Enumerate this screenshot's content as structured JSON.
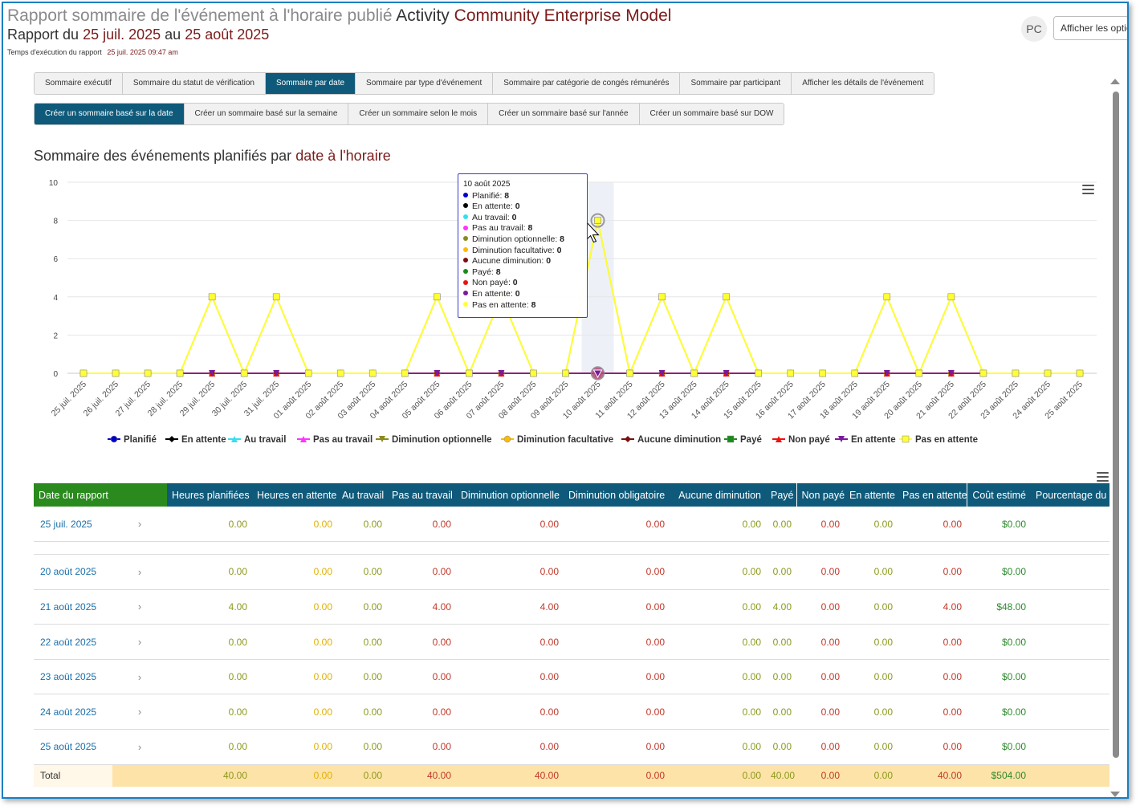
{
  "header": {
    "title_prefix": "Rapport sommaire de l'événement à l'horaire publié",
    "title_activity": "Activity",
    "title_name": "Community Enterprise Model",
    "range_prefix": "Rapport du",
    "range_start": "25 juil. 2025",
    "range_mid": "au",
    "range_end": "25 août 2025",
    "runtime_label": "Temps d'exécution du rapport",
    "runtime_value": "25 juil. 2025 09:47 am",
    "avatar": "PC",
    "options_button": "Afficher les options"
  },
  "tabs_main": [
    {
      "label": "Sommaire exécutif",
      "active": false
    },
    {
      "label": "Sommaire du statut de vérification",
      "active": false
    },
    {
      "label": "Sommaire par date",
      "active": true
    },
    {
      "label": "Sommaire par type d'événement",
      "active": false
    },
    {
      "label": "Sommaire par catégorie de congés rémunérés",
      "active": false
    },
    {
      "label": "Sommaire par participant",
      "active": false
    },
    {
      "label": "Afficher les détails de l'événement",
      "active": false
    }
  ],
  "tabs_sub": [
    {
      "label": "Créer un sommaire basé sur la date",
      "active": true
    },
    {
      "label": "Créer un sommaire basé sur la semaine",
      "active": false
    },
    {
      "label": "Créer un sommaire selon le mois",
      "active": false
    },
    {
      "label": "Créer un sommaire basé sur l'année",
      "active": false
    },
    {
      "label": "Créer un sommaire basé sur DOW",
      "active": false
    }
  ],
  "chart": {
    "title_prefix": "Sommaire des événements planifiés par",
    "title_highlight": "date à l'horaire"
  },
  "tooltip": {
    "date": "10 août 2025",
    "rows": [
      {
        "label": "Planifié:",
        "value": "8",
        "color": "#0000cc"
      },
      {
        "label": "En attente:",
        "value": "0",
        "color": "#000000"
      },
      {
        "label": "Au travail:",
        "value": "0",
        "color": "#33e0f0"
      },
      {
        "label": "Pas au travail:",
        "value": "8",
        "color": "#ff33ff"
      },
      {
        "label": "Diminution optionnelle:",
        "value": "8",
        "color": "#8a8a1e"
      },
      {
        "label": "Diminution facultative:",
        "value": "0",
        "color": "#ffbb00"
      },
      {
        "label": "Aucune diminution:",
        "value": "0",
        "color": "#7b1010"
      },
      {
        "label": "Payé:",
        "value": "8",
        "color": "#1a8a1a"
      },
      {
        "label": "Non payé:",
        "value": "0",
        "color": "#ee1111"
      },
      {
        "label": "En attente:",
        "value": "0",
        "color": "#7a1a9a"
      },
      {
        "label": "Pas en attente:",
        "value": "8",
        "color": "#ffff33"
      }
    ]
  },
  "chart_data": {
    "type": "line",
    "title": "Sommaire des événements planifiés par date à l'horaire",
    "ylim": [
      0,
      10
    ],
    "yticks": [
      0,
      2,
      4,
      6,
      8,
      10
    ],
    "grid": true,
    "legend_position": "bottom",
    "categories": [
      "25 juil. 2025",
      "26 juil. 2025",
      "27 juil. 2025",
      "28 juil. 2025",
      "29 juil. 2025",
      "30 juil. 2025",
      "31 juil. 2025",
      "01 août 2025",
      "02 août 2025",
      "03 août 2025",
      "04 août 2025",
      "05 août 2025",
      "06 août 2025",
      "07 août 2025",
      "08 août 2025",
      "09 août 2025",
      "10 août 2025",
      "11 août 2025",
      "12 août 2025",
      "13 août 2025",
      "14 août 2025",
      "15 août 2025",
      "16 août 2025",
      "17 août 2025",
      "18 août 2025",
      "19 août 2025",
      "20 août 2025",
      "21 août 2025",
      "22 août 2025",
      "23 août 2025",
      "24 août 2025",
      "25 août 2025"
    ],
    "series": [
      {
        "name": "Planifié",
        "color": "#0000cc",
        "marker": "circle",
        "values": [
          0,
          0,
          0,
          0,
          4,
          0,
          4,
          0,
          0,
          0,
          0,
          4,
          0,
          4,
          0,
          0,
          8,
          0,
          4,
          0,
          4,
          0,
          0,
          0,
          0,
          4,
          0,
          4,
          0,
          0,
          0,
          0
        ]
      },
      {
        "name": "En attente",
        "color": "#000000",
        "marker": "diamond",
        "values": [
          0,
          0,
          0,
          0,
          0,
          0,
          0,
          0,
          0,
          0,
          0,
          0,
          0,
          0,
          0,
          0,
          0,
          0,
          0,
          0,
          0,
          0,
          0,
          0,
          0,
          0,
          0,
          0,
          0,
          0,
          0,
          0
        ]
      },
      {
        "name": "Au travail",
        "color": "#33e0f0",
        "marker": "triangle",
        "values": [
          0,
          0,
          0,
          0,
          0,
          0,
          0,
          0,
          0,
          0,
          0,
          0,
          0,
          0,
          0,
          0,
          0,
          0,
          0,
          0,
          0,
          0,
          0,
          0,
          0,
          0,
          0,
          0,
          0,
          0,
          0,
          0
        ]
      },
      {
        "name": "Pas au travail",
        "color": "#ff33ff",
        "marker": "triangle",
        "values": [
          0,
          0,
          0,
          0,
          4,
          0,
          4,
          0,
          0,
          0,
          0,
          4,
          0,
          4,
          0,
          0,
          8,
          0,
          4,
          0,
          4,
          0,
          0,
          0,
          0,
          4,
          0,
          4,
          0,
          0,
          0,
          0
        ]
      },
      {
        "name": "Diminution optionnelle",
        "color": "#8a8a1e",
        "marker": "triangle-down",
        "values": [
          0,
          0,
          0,
          0,
          4,
          0,
          4,
          0,
          0,
          0,
          0,
          4,
          0,
          4,
          0,
          0,
          8,
          0,
          4,
          0,
          4,
          0,
          0,
          0,
          0,
          4,
          0,
          4,
          0,
          0,
          0,
          0
        ]
      },
      {
        "name": "Diminution facultative",
        "color": "#ffbb00",
        "marker": "circle",
        "values": [
          0,
          0,
          0,
          0,
          0,
          0,
          0,
          0,
          0,
          0,
          0,
          0,
          0,
          0,
          0,
          0,
          0,
          0,
          0,
          0,
          0,
          0,
          0,
          0,
          0,
          0,
          0,
          0,
          0,
          0,
          0,
          0
        ]
      },
      {
        "name": "Aucune diminution",
        "color": "#7b1010",
        "marker": "diamond",
        "values": [
          0,
          0,
          0,
          0,
          0,
          0,
          0,
          0,
          0,
          0,
          0,
          0,
          0,
          0,
          0,
          0,
          0,
          0,
          0,
          0,
          0,
          0,
          0,
          0,
          0,
          0,
          0,
          0,
          0,
          0,
          0,
          0
        ]
      },
      {
        "name": "Payé",
        "color": "#1a8a1a",
        "marker": "square",
        "values": [
          0,
          0,
          0,
          0,
          4,
          0,
          4,
          0,
          0,
          0,
          0,
          4,
          0,
          4,
          0,
          0,
          8,
          0,
          4,
          0,
          4,
          0,
          0,
          0,
          0,
          4,
          0,
          4,
          0,
          0,
          0,
          0
        ]
      },
      {
        "name": "Non payé",
        "color": "#ee1111",
        "marker": "triangle",
        "values": [
          0,
          0,
          0,
          0,
          0,
          0,
          0,
          0,
          0,
          0,
          0,
          0,
          0,
          0,
          0,
          0,
          0,
          0,
          0,
          0,
          0,
          0,
          0,
          0,
          0,
          0,
          0,
          0,
          0,
          0,
          0,
          0
        ]
      },
      {
        "name": "En attente",
        "color": "#7a1a9a",
        "marker": "triangle-down",
        "values": [
          0,
          0,
          0,
          0,
          0,
          0,
          0,
          0,
          0,
          0,
          0,
          0,
          0,
          0,
          0,
          0,
          0,
          0,
          0,
          0,
          0,
          0,
          0,
          0,
          0,
          0,
          0,
          0,
          0,
          0,
          0,
          0
        ]
      },
      {
        "name": "Pas en attente",
        "color": "#ffff33",
        "marker": "square",
        "values": [
          0,
          0,
          0,
          0,
          4,
          0,
          4,
          0,
          0,
          0,
          0,
          4,
          0,
          4,
          0,
          0,
          8,
          0,
          4,
          0,
          4,
          0,
          0,
          0,
          0,
          4,
          0,
          4,
          0,
          0,
          0,
          0
        ]
      }
    ]
  },
  "table": {
    "columns": [
      "Date du rapport",
      "Heures planifiées",
      "Heures en attente",
      "Au travail",
      "Pas au travail",
      "Diminution optionnelle",
      "Diminution obligatoire",
      "Aucune diminution",
      "Payé",
      "Non payé",
      "En attente",
      "Pas en attente",
      "Coût estimé",
      "Pourcentage du no"
    ],
    "rows": [
      {
        "date": "25 juil. 2025",
        "v": [
          "0.00",
          "0.00",
          "0.00",
          "0.00",
          "0.00",
          "0.00",
          "0.00",
          "0.00",
          "0.00",
          "0.00",
          "0.00",
          "$0.00"
        ]
      },
      {
        "empty": true
      },
      {
        "date": "20 août 2025",
        "v": [
          "0.00",
          "0.00",
          "0.00",
          "0.00",
          "0.00",
          "0.00",
          "0.00",
          "0.00",
          "0.00",
          "0.00",
          "0.00",
          "$0.00"
        ]
      },
      {
        "date": "21 août 2025",
        "v": [
          "4.00",
          "0.00",
          "0.00",
          "4.00",
          "4.00",
          "0.00",
          "0.00",
          "4.00",
          "0.00",
          "0.00",
          "4.00",
          "$48.00"
        ]
      },
      {
        "date": "22 août 2025",
        "v": [
          "0.00",
          "0.00",
          "0.00",
          "0.00",
          "0.00",
          "0.00",
          "0.00",
          "0.00",
          "0.00",
          "0.00",
          "0.00",
          "$0.00"
        ]
      },
      {
        "date": "23 août 2025",
        "v": [
          "0.00",
          "0.00",
          "0.00",
          "0.00",
          "0.00",
          "0.00",
          "0.00",
          "0.00",
          "0.00",
          "0.00",
          "0.00",
          "$0.00"
        ]
      },
      {
        "date": "24 août 2025",
        "v": [
          "0.00",
          "0.00",
          "0.00",
          "0.00",
          "0.00",
          "0.00",
          "0.00",
          "0.00",
          "0.00",
          "0.00",
          "0.00",
          "$0.00"
        ]
      },
      {
        "date": "25 août 2025",
        "v": [
          "0.00",
          "0.00",
          "0.00",
          "0.00",
          "0.00",
          "0.00",
          "0.00",
          "0.00",
          "0.00",
          "0.00",
          "0.00",
          "$0.00"
        ]
      }
    ],
    "total": {
      "label": "Total",
      "v": [
        "40.00",
        "0.00",
        "0.00",
        "40.00",
        "40.00",
        "0.00",
        "0.00",
        "40.00",
        "0.00",
        "0.00",
        "40.00",
        "$504.00"
      ]
    }
  },
  "colors": {
    "tab_active": "#0f5a7a",
    "header_first": "#2a8a1e",
    "maroon": "#7b1c1c",
    "link": "#1a6faa",
    "total_bg": "#fde3a7"
  }
}
